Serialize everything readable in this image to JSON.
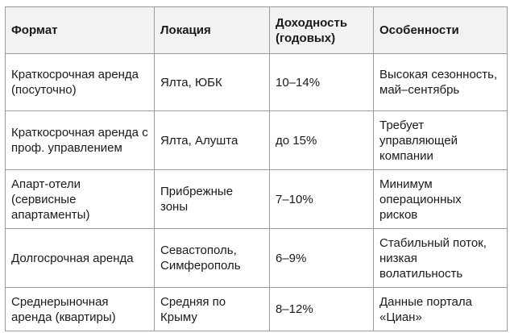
{
  "table": {
    "headers": [
      "Формат",
      "Локация",
      "Доходность (годовых)",
      "Особенности"
    ],
    "rows": [
      {
        "format": "Краткосрочная аренда (посуточно)",
        "location": "Ялта, ЮБК",
        "yield": "10–14%",
        "features": "Высокая сезонность, май–сентябрь"
      },
      {
        "format": "Краткосрочная аренда с проф. управлением",
        "location": "Ялта, Алушта",
        "yield": "до 15%",
        "features": "Требует управляющей компании"
      },
      {
        "format": "Апарт-отели (сервисные апартаменты)",
        "location": "Прибрежные зоны",
        "yield": "7–10%",
        "features": "Минимум операционных рисков"
      },
      {
        "format": "Долгосрочная аренда",
        "location": "Севастополь, Симферополь",
        "yield": "6–9%",
        "features": "Стабильный поток, низкая волатильность"
      },
      {
        "format": "Среднерыночная аренда (квартиры)",
        "location": "Средняя по Крыму",
        "yield": "8–12%",
        "features": "Данные портала «Циан»"
      }
    ]
  }
}
